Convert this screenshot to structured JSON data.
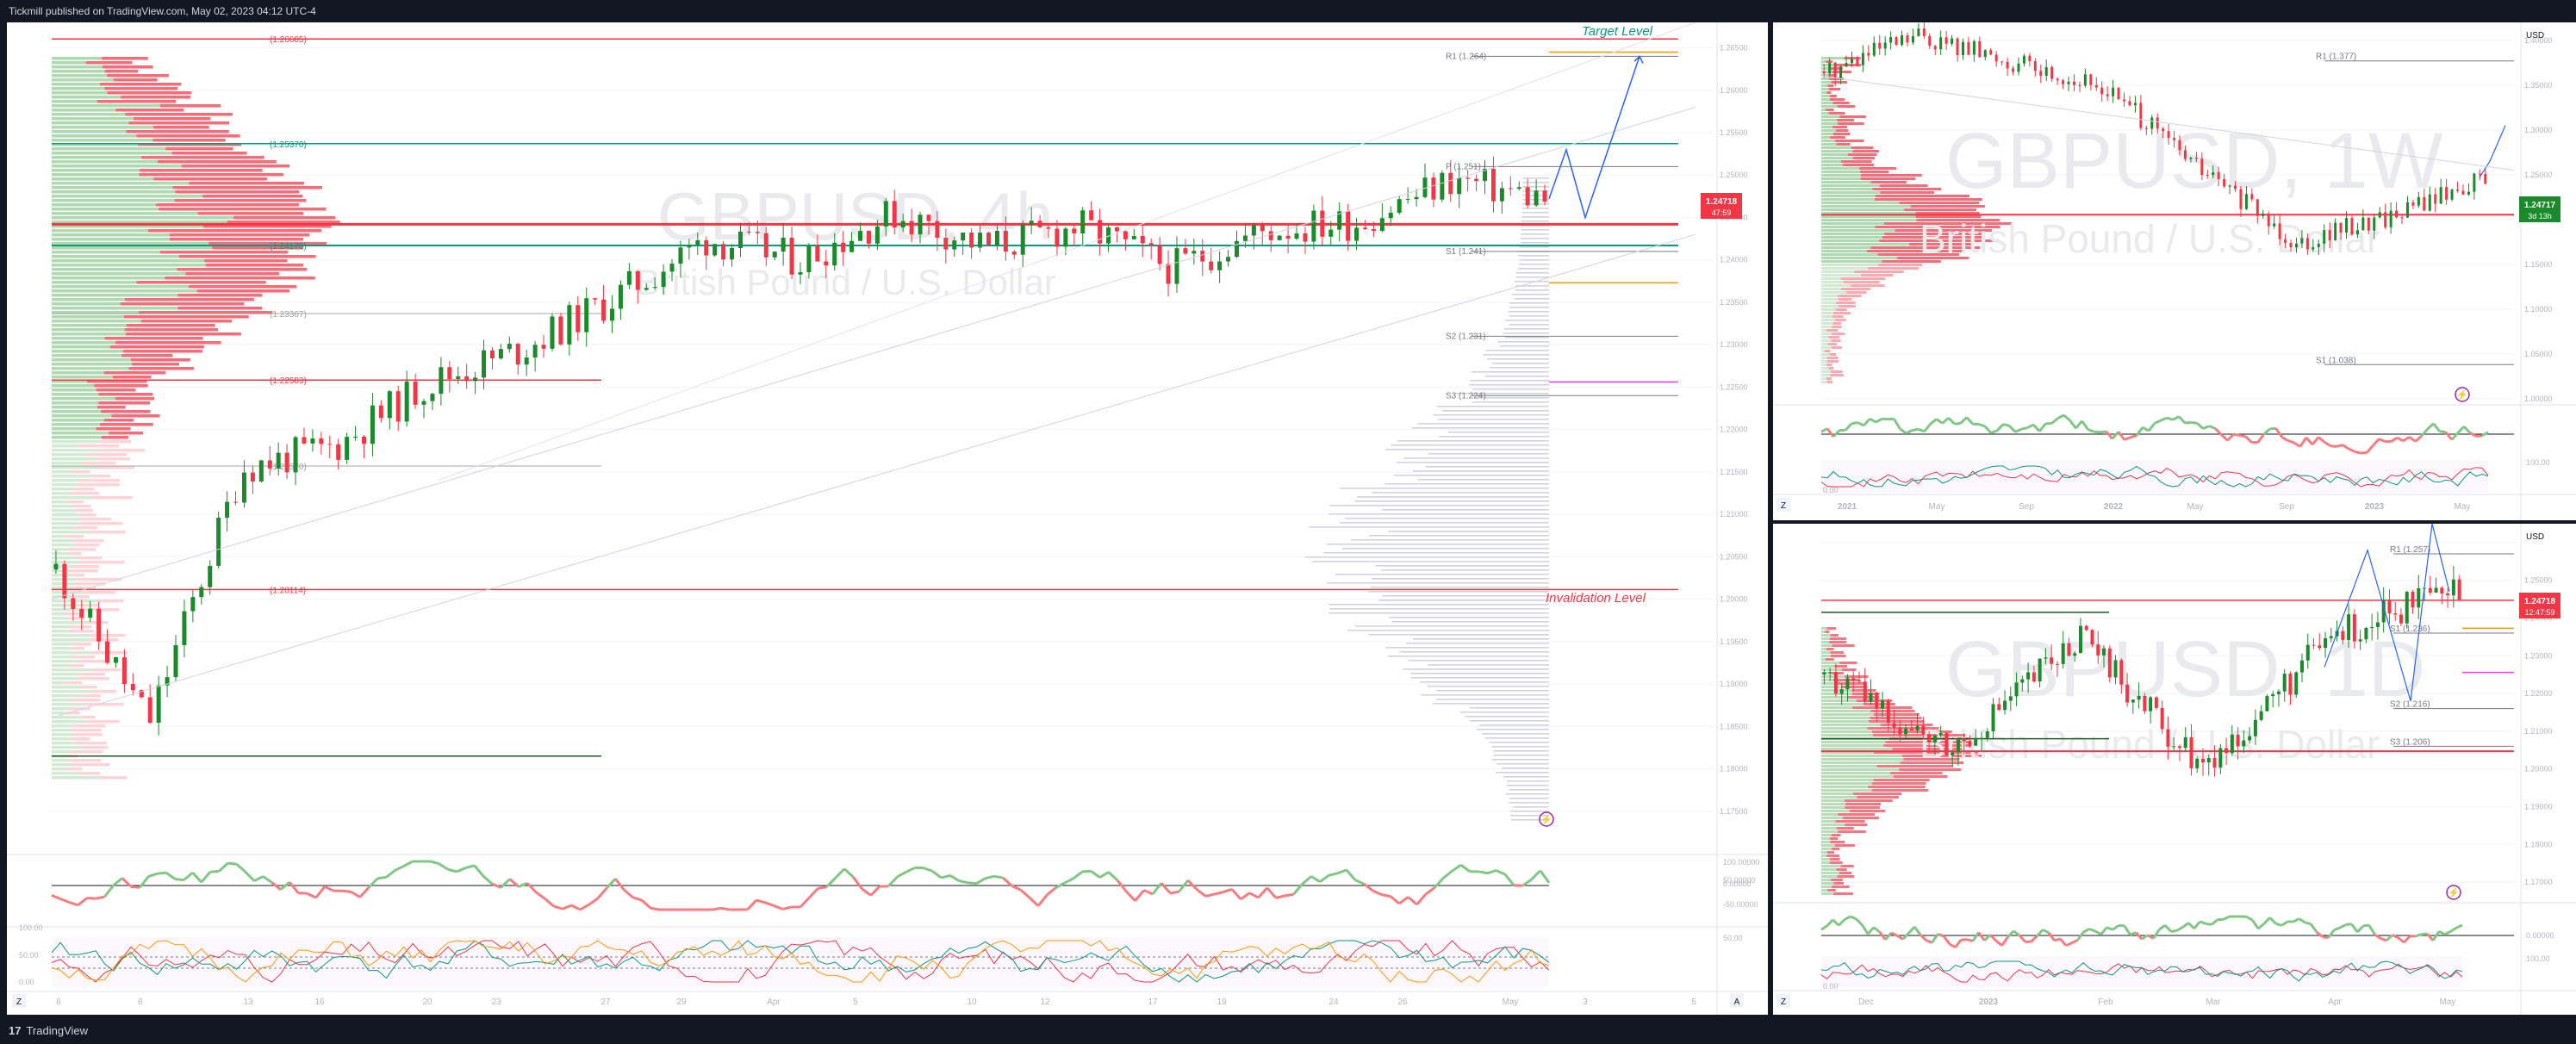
{
  "header": {
    "publisher_line": "Tickmill published on TradingView.com, May 02, 2023 04:12 UTC-4"
  },
  "footer": {
    "brand": "TradingView",
    "logo_glyph": "17"
  },
  "panels": {
    "main": {
      "watermark_symbol": "GBPUSD, 4h",
      "watermark_name": "British Pound / U.S. Dollar",
      "price_ticks": [
        "1.26500",
        "1.26000",
        "1.25500",
        "1.25000",
        "1.24500",
        "1.24000",
        "1.23500",
        "1.23000",
        "1.22500",
        "1.22000",
        "1.21500",
        "1.21000",
        "1.20500",
        "1.20000",
        "1.19500",
        "1.19000",
        "1.18500",
        "1.18000",
        "1.17500"
      ],
      "last_price": "1.24718",
      "countdown": "47:59",
      "levels": [
        {
          "label": "(1.26605)",
          "value": 1.26605,
          "color": "#f23645"
        },
        {
          "label": "(1.25370)",
          "value": 1.2537,
          "color": "#089981"
        },
        {
          "label": "(1.24170)",
          "value": 1.2417,
          "color": "#089981"
        },
        {
          "label": "(1.23367)",
          "value": 1.23367,
          "color": "#9e9e9e"
        },
        {
          "label": "(1.22583)",
          "value": 1.22583,
          "color": "#f23645"
        },
        {
          "label": "(1.21570)",
          "value": 1.2157,
          "color": "#9e9e9e"
        },
        {
          "label": "(1.20114)",
          "value": 1.20114,
          "color": "#f23645"
        }
      ],
      "pivots": [
        {
          "label": "R1 (1.264)",
          "value": 1.264
        },
        {
          "label": "P (1.251)",
          "value": 1.251
        },
        {
          "label": "S1 (1.241)",
          "value": 1.241
        },
        {
          "label": "S2 (1.231)",
          "value": 1.231
        },
        {
          "label": "S3 (1.224)",
          "value": 1.224
        }
      ],
      "target_label": "Target  Level",
      "invalidation_label": "Invalidation Level",
      "x_ticks": [
        "6",
        "8",
        "13",
        "16",
        "20",
        "23",
        "27",
        "29",
        "Apr",
        "5",
        "10",
        "12",
        "17",
        "19",
        "24",
        "26",
        "May",
        "3",
        "5"
      ],
      "osc1_ticks": [
        "100.00000",
        "50.00000",
        "0.00000",
        "-50.00000"
      ],
      "osc2_ticks": [
        "100.00",
        "50.00",
        "0.00"
      ],
      "osc2_right_ticks": [
        "50.00"
      ],
      "corner_left": "Z",
      "corner_right": "A"
    },
    "weekly": {
      "watermark_symbol": "GBPUSD, 1W",
      "watermark_name": "British Pound / U.S. Dollar",
      "currency": "USD",
      "price_ticks": [
        "1.40000",
        "1.35000",
        "1.30000",
        "1.25000",
        "1.20000",
        "1.15000",
        "1.10000",
        "1.05000",
        "1.00000"
      ],
      "last_price": "1.24717",
      "countdown": "3d 13h",
      "pivots": [
        {
          "label": "R1 (1.377)",
          "value": 1.377
        },
        {
          "label": "S1 (1.038)",
          "value": 1.038
        }
      ],
      "x_ticks": [
        "2021",
        "May",
        "Sep",
        "2022",
        "May",
        "Sep",
        "2023",
        "May"
      ],
      "osc_ticks": [
        "100.00",
        "0.00"
      ],
      "corner_left": "Z"
    },
    "daily": {
      "watermark_symbol": "GBPUSD, 1D",
      "watermark_name": "British Pound / U.S. Dollar",
      "currency": "USD",
      "price_ticks": [
        "1.26000",
        "1.25000",
        "1.24000",
        "1.23000",
        "1.22000",
        "1.21000",
        "1.20000",
        "1.19000",
        "1.18000",
        "1.17000"
      ],
      "last_price": "1.24718",
      "countdown": "12:47:59",
      "pivots": [
        {
          "label": "R1 (1.257)",
          "value": 1.257
        },
        {
          "label": "S1 (1.236)",
          "value": 1.236
        },
        {
          "label": "S2 (1.216)",
          "value": 1.216
        },
        {
          "label": "S3 (1.206)",
          "value": 1.206
        }
      ],
      "x_ticks": [
        "Dec",
        "2023",
        "Feb",
        "Mar",
        "Apr",
        "May"
      ],
      "osc_ticks": [
        "0.00000",
        "100.00",
        "0.00"
      ],
      "corner_left": "Z"
    }
  },
  "colors": {
    "up": "#089981",
    "up_bar": "#1b8a2a",
    "down": "#f23645",
    "volume_up": "#a5d6a7",
    "volume_down": "#f7525f",
    "projection": "#2962ff",
    "pivot_line": "#787b86",
    "bg_dark": "#131722"
  },
  "chart_data": [
    {
      "type": "candlestick",
      "panel": "main",
      "title": "GBPUSD, 4h",
      "ylim": [
        1.17,
        1.268
      ],
      "ylabel": "",
      "xlabel": "",
      "x": [
        "6",
        "8",
        "13",
        "16",
        "20",
        "23",
        "27",
        "29",
        "Apr",
        "5",
        "10",
        "12",
        "17",
        "19",
        "24",
        "26",
        "May"
      ],
      "close": [
        1.2035,
        1.1855,
        1.2155,
        1.218,
        1.2255,
        1.2295,
        1.2355,
        1.2425,
        1.24,
        1.2455,
        1.2415,
        1.244,
        1.239,
        1.2435,
        1.2445,
        1.2495,
        1.2472
      ],
      "last": 1.24718,
      "projection": [
        1.2472,
        1.253,
        1.245,
        1.264
      ]
    },
    {
      "type": "candlestick",
      "panel": "weekly",
      "title": "GBPUSD, 1W",
      "ylim": [
        0.995,
        1.42
      ],
      "x": [
        "2021",
        "May",
        "Sep",
        "2022",
        "May",
        "Sep",
        "2023",
        "May"
      ],
      "close": [
        1.365,
        1.405,
        1.375,
        1.345,
        1.255,
        1.175,
        1.205,
        1.247
      ],
      "last": 1.24717
    },
    {
      "type": "candlestick",
      "panel": "daily",
      "title": "GBPUSD, 1D",
      "ylim": [
        1.165,
        1.265
      ],
      "x": [
        "Dec",
        "2023",
        "Feb",
        "Mar",
        "Apr",
        "May"
      ],
      "close": [
        1.225,
        1.205,
        1.235,
        1.2,
        1.236,
        1.247
      ],
      "last": 1.24718
    }
  ]
}
